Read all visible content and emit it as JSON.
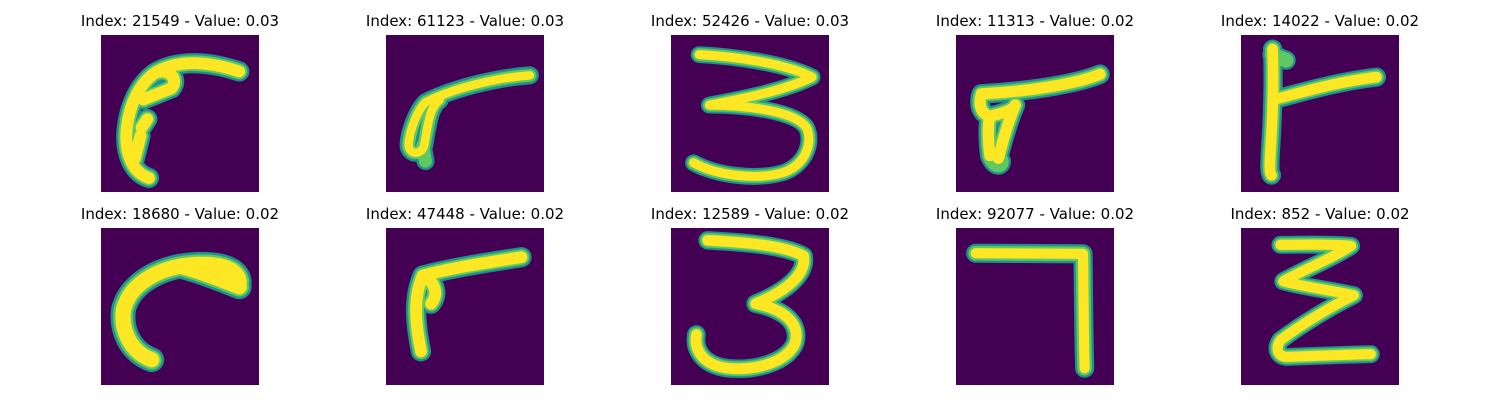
{
  "colors": {
    "background": "#440154",
    "stroke_edge": "#21918c",
    "stroke_mid": "#5ec962",
    "stroke_core": "#fde725",
    "page": "#ffffff",
    "title_text": "#000000"
  },
  "panels": [
    {
      "title": "Index: 21549 - Value: 0.03",
      "glyph_icon": "handwritten-curve-glyph"
    },
    {
      "title": "Index: 61123 - Value: 0.03",
      "glyph_icon": "handwritten-seven-glyph"
    },
    {
      "title": "Index: 52426 - Value: 0.03",
      "glyph_icon": "handwritten-three-glyph"
    },
    {
      "title": "Index: 11313 - Value: 0.02",
      "glyph_icon": "handwritten-seven-glyph"
    },
    {
      "title": "Index: 14022 - Value: 0.02",
      "glyph_icon": "handwritten-t-glyph"
    },
    {
      "title": "Index: 18680 - Value: 0.02",
      "glyph_icon": "handwritten-curve-glyph"
    },
    {
      "title": "Index: 47448 - Value: 0.02",
      "glyph_icon": "handwritten-seven-glyph"
    },
    {
      "title": "Index: 12589 - Value: 0.02",
      "glyph_icon": "handwritten-three-glyph"
    },
    {
      "title": "Index: 92077 - Value: 0.02",
      "glyph_icon": "handwritten-seven-glyph"
    },
    {
      "title": "Index: 852 - Value: 0.02",
      "glyph_icon": "handwritten-z-glyph"
    }
  ]
}
